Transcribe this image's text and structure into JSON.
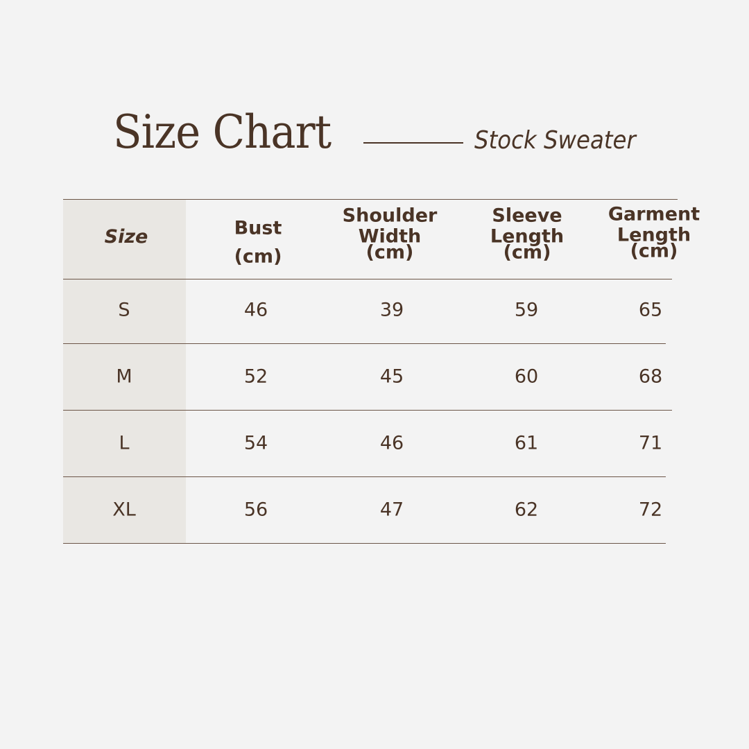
{
  "title": "Size Chart",
  "subtitle": "Stock Sweater",
  "colors": {
    "background": "#f3f3f3",
    "text": "#4a3426",
    "size_column": "#e9e7e3"
  },
  "headers": [
    {
      "lines": [
        "Size"
      ]
    },
    {
      "lines": [
        "Bust",
        "(cm)"
      ]
    },
    {
      "lines": [
        "Shoulder",
        "Width",
        "(cm)"
      ]
    },
    {
      "lines": [
        "Sleeve",
        "Length",
        "(cm)"
      ]
    },
    {
      "lines": [
        "Garment",
        "Length",
        "(cm)"
      ]
    }
  ],
  "rows": [
    [
      "S",
      "46",
      "39",
      "59",
      "65"
    ],
    [
      "M",
      "52",
      "45",
      "60",
      "68"
    ],
    [
      "L",
      "54",
      "46",
      "61",
      "71"
    ],
    [
      "XL",
      "56",
      "47",
      "62",
      "72"
    ]
  ]
}
